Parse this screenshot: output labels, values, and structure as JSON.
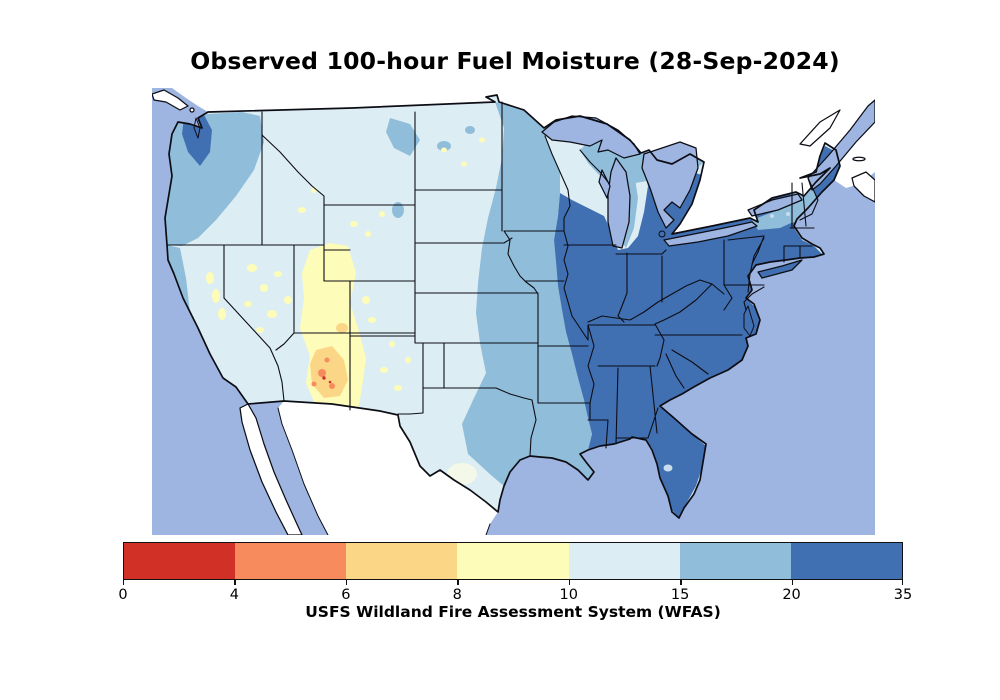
{
  "title": "Observed 100-hour Fuel Moisture (28-Sep-2024)",
  "colorbar": {
    "label": "USFS Wildland Fire Assessment System (WFAS)",
    "ticks": [
      "0",
      "4",
      "6",
      "8",
      "10",
      "15",
      "20",
      "35"
    ],
    "segments": [
      {
        "range": "0-4",
        "color": "#d13027"
      },
      {
        "range": "4-6",
        "color": "#f88b5e"
      },
      {
        "range": "6-8",
        "color": "#fcd687"
      },
      {
        "range": "8-10",
        "color": "#fdfcb9"
      },
      {
        "range": "10-15",
        "color": "#ddedf4"
      },
      {
        "range": "15-20",
        "color": "#90bdd9"
      },
      {
        "range": "20-35",
        "color": "#4170b2"
      }
    ]
  },
  "map": {
    "ocean_color": "#9db5e0",
    "landmask_color": "#ffffff",
    "border_color": "#0d0d15",
    "speckle_light_color": "#c9dcee",
    "pale_patch_color": "#f3f8e9",
    "regions": [
      {
        "area": "Eastern US (Midwest, Northeast, South, Florida)",
        "fuel_moisture_bin": "20-35"
      },
      {
        "area": "Upper Midwest / Mississippi Valley / Gulf coast band",
        "fuel_moisture_bin": "15-20"
      },
      {
        "area": "Pacific Northwest coast",
        "fuel_moisture_bin": "15-35"
      },
      {
        "area": "Great Plains, California and interior West",
        "fuel_moisture_bin": "10-15"
      },
      {
        "area": "Utah and Arizona",
        "fuel_moisture_bin": "8-10"
      },
      {
        "area": "Central Arizona pockets",
        "fuel_moisture_bin": "4-8"
      },
      {
        "area": "Isolated central Arizona spots",
        "fuel_moisture_bin": "0-4"
      }
    ]
  }
}
